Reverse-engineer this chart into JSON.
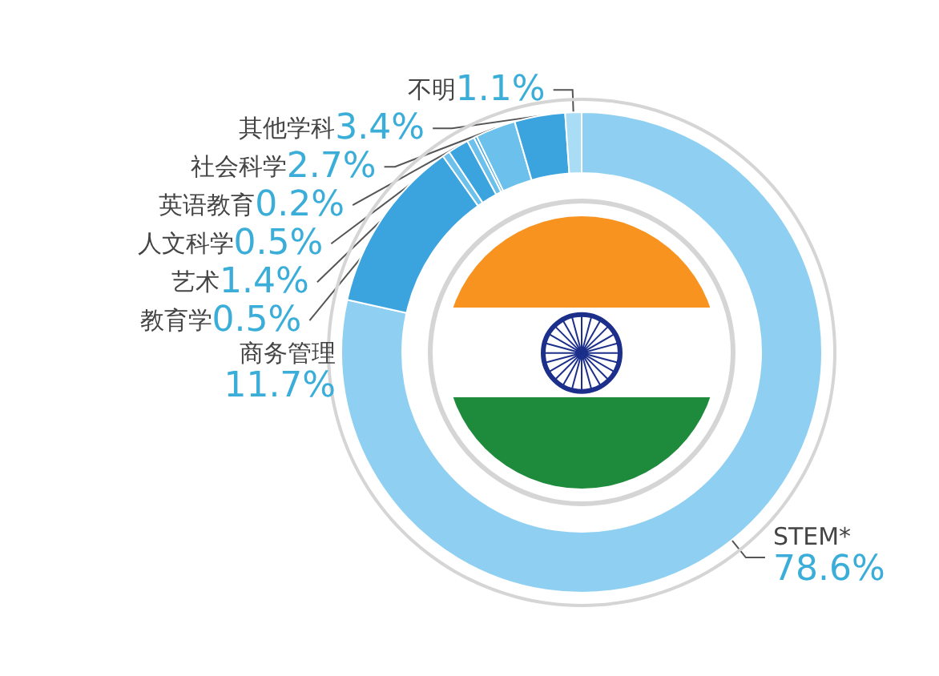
{
  "chart_data": {
    "type": "donut",
    "categories": [
      "STEM*",
      "商务管理",
      "教育学",
      "艺术",
      "人文科学",
      "英语教育",
      "社会科学",
      "其他学科",
      "不明"
    ],
    "values": [
      78.6,
      11.7,
      0.5,
      1.4,
      0.5,
      0.2,
      2.7,
      3.4,
      1.1
    ],
    "value_labels": [
      "78.6%",
      "11.7%",
      "0.5%",
      "1.4%",
      "0.5%",
      "0.2%",
      "2.7%",
      "3.4%",
      "1.1%"
    ],
    "colors": [
      "#8fd0f2",
      "#3ba3de",
      "#6cc0ec",
      "#3ba3de",
      "#6cc0ec",
      "#3ba3de",
      "#6cc0ec",
      "#3ba3de",
      "#a9dcf5"
    ],
    "legend": false
  }
}
